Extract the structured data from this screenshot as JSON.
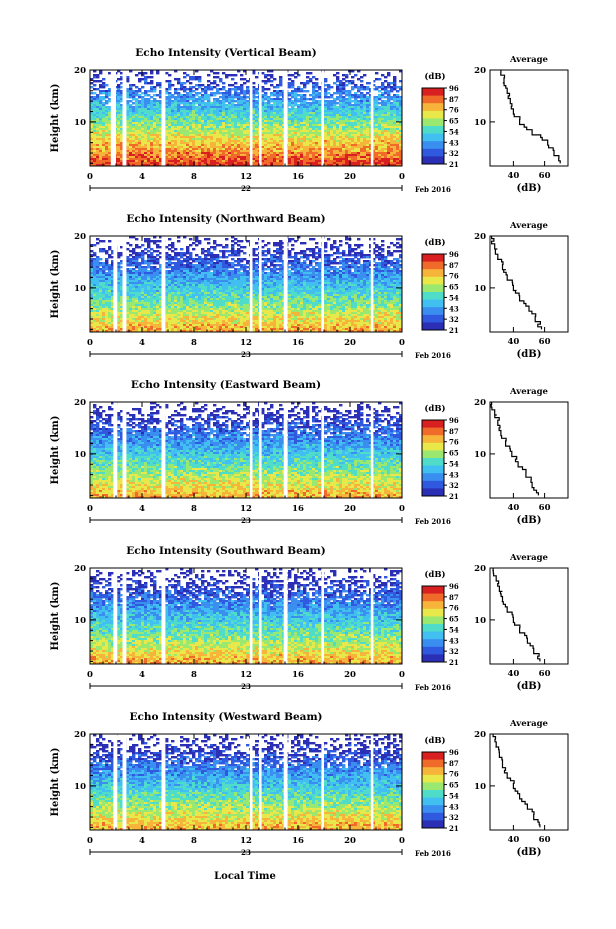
{
  "figure": {
    "xlabel_common": "Local Time",
    "date_label": "Feb 2016",
    "colorbar_unit": "(dB)",
    "colorbar_ticks": [
      "96",
      "87",
      "76",
      "65",
      "54",
      "43",
      "32",
      "21"
    ],
    "colorbar_colors": [
      "#2a2fb5",
      "#2f5ae0",
      "#3a8ef0",
      "#40bff0",
      "#4fdcc8",
      "#9be870",
      "#e8e84a",
      "#f7b43a",
      "#f06a2a",
      "#d82020"
    ],
    "profile_title": "Average",
    "profile_xlabel": "(dB)",
    "profile_xticks": [
      "40",
      "60"
    ]
  },
  "chart_data": [
    {
      "type": "heatmap",
      "title": "Echo Intensity (Vertical Beam)",
      "ylabel": "Height (km)",
      "xticks": [
        "0",
        "4",
        "8",
        "12",
        "16",
        "20",
        "0"
      ],
      "day_label": "22",
      "yticks": [
        "10",
        "20"
      ],
      "ylim": [
        1.5,
        20
      ],
      "xlim": [
        0,
        24
      ],
      "data_gaps_hours": [
        [
          1.6,
          2.0
        ],
        [
          2.5,
          2.8
        ],
        [
          5.5,
          5.8
        ],
        [
          12.3,
          12.5
        ],
        [
          13.0,
          13.2
        ],
        [
          14.9,
          15.2
        ],
        [
          17.8,
          18.0
        ],
        [
          21.6,
          21.8
        ]
      ],
      "intensity_profile": {
        "heights_km": [
          2,
          4,
          6,
          8,
          10,
          12,
          14,
          16,
          18,
          20
        ],
        "mean_db": [
          70,
          66,
          62,
          52,
          44,
          40,
          38,
          36,
          34,
          32
        ]
      }
    },
    {
      "type": "heatmap",
      "title": "Echo Intensity (Northward Beam)",
      "ylabel": "Height (km)",
      "xticks": [
        "0",
        "4",
        "8",
        "12",
        "16",
        "20",
        "0"
      ],
      "day_label": "23",
      "yticks": [
        "10",
        "20"
      ],
      "ylim": [
        1.5,
        20
      ],
      "xlim": [
        0,
        24
      ],
      "data_gaps_hours": [
        [
          1.8,
          2.1
        ],
        [
          2.5,
          2.8
        ],
        [
          5.5,
          5.8
        ],
        [
          12.3,
          12.5
        ],
        [
          13.0,
          13.2
        ],
        [
          14.9,
          15.2
        ],
        [
          17.8,
          18.0
        ],
        [
          21.6,
          21.8
        ]
      ],
      "intensity_profile": {
        "heights_km": [
          2,
          4,
          6,
          8,
          10,
          12,
          14,
          16,
          18,
          20
        ],
        "mean_db": [
          58,
          54,
          50,
          44,
          40,
          36,
          33,
          30,
          28,
          26
        ]
      }
    },
    {
      "type": "heatmap",
      "title": "Echo Intensity (Eastward Beam)",
      "ylabel": "Height (km)",
      "xticks": [
        "0",
        "4",
        "8",
        "12",
        "16",
        "20",
        "0"
      ],
      "day_label": "23",
      "yticks": [
        "10",
        "20"
      ],
      "ylim": [
        1.5,
        20
      ],
      "xlim": [
        0,
        24
      ],
      "data_gaps_hours": [
        [
          1.8,
          2.1
        ],
        [
          2.5,
          2.8
        ],
        [
          5.5,
          5.8
        ],
        [
          12.3,
          12.5
        ],
        [
          13.0,
          13.2
        ],
        [
          14.9,
          15.2
        ],
        [
          17.8,
          18.0
        ],
        [
          21.6,
          21.8
        ]
      ],
      "intensity_profile": {
        "heights_km": [
          2,
          4,
          6,
          8,
          10,
          12,
          14,
          16,
          18,
          20
        ],
        "mean_db": [
          56,
          52,
          48,
          43,
          39,
          35,
          32,
          30,
          28,
          26
        ]
      }
    },
    {
      "type": "heatmap",
      "title": "Echo Intensity (Southward Beam)",
      "ylabel": "Height (km)",
      "xticks": [
        "0",
        "4",
        "8",
        "12",
        "16",
        "20",
        "0"
      ],
      "day_label": "23",
      "yticks": [
        "10",
        "20"
      ],
      "ylim": [
        1.5,
        20
      ],
      "xlim": [
        0,
        24
      ],
      "data_gaps_hours": [
        [
          1.8,
          2.1
        ],
        [
          2.5,
          2.8
        ],
        [
          5.5,
          5.8
        ],
        [
          12.3,
          12.5
        ],
        [
          13.0,
          13.2
        ],
        [
          14.9,
          15.2
        ],
        [
          17.8,
          18.0
        ],
        [
          21.6,
          21.8
        ]
      ],
      "intensity_profile": {
        "heights_km": [
          2,
          4,
          6,
          8,
          10,
          12,
          14,
          16,
          18,
          20
        ],
        "mean_db": [
          57,
          53,
          49,
          44,
          40,
          36,
          33,
          31,
          29,
          27
        ]
      }
    },
    {
      "type": "heatmap",
      "title": "Echo Intensity (Westward Beam)",
      "ylabel": "Height (km)",
      "xticks": [
        "0",
        "4",
        "8",
        "12",
        "16",
        "20",
        "0"
      ],
      "day_label": "23",
      "yticks": [
        "10",
        "20"
      ],
      "ylim": [
        1.5,
        20
      ],
      "xlim": [
        0,
        24
      ],
      "data_gaps_hours": [
        [
          1.8,
          2.1
        ],
        [
          2.5,
          2.8
        ],
        [
          5.5,
          5.8
        ],
        [
          12.3,
          12.5
        ],
        [
          13.0,
          13.2
        ],
        [
          14.9,
          15.2
        ],
        [
          17.8,
          18.0
        ],
        [
          21.6,
          21.8
        ]
      ],
      "intensity_profile": {
        "heights_km": [
          2,
          4,
          6,
          8,
          10,
          12,
          14,
          16,
          18,
          20
        ],
        "mean_db": [
          57,
          53,
          49,
          44,
          40,
          36,
          33,
          31,
          29,
          27
        ]
      }
    }
  ]
}
